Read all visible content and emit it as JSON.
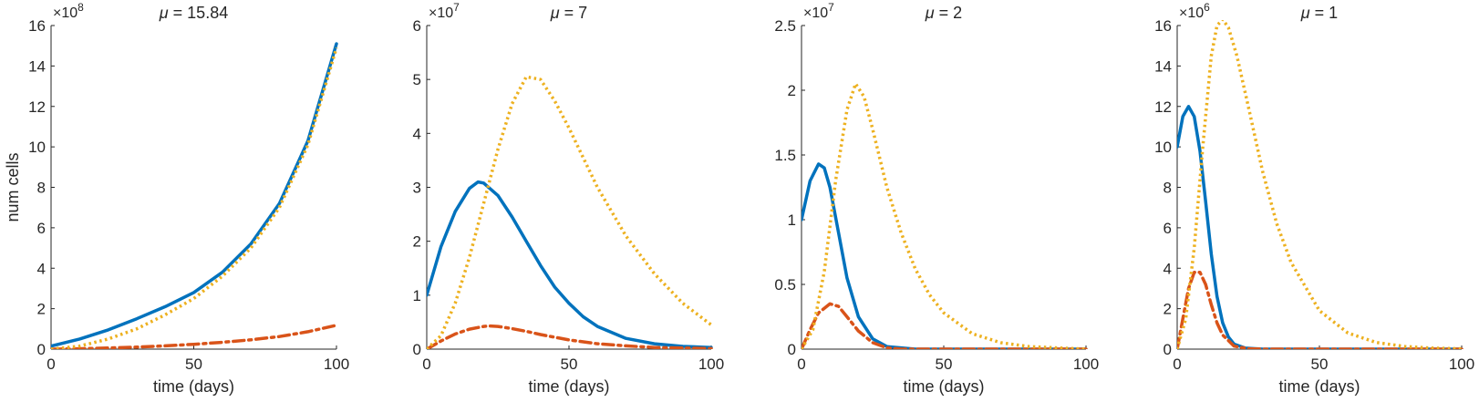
{
  "colors": {
    "series1": "#0072BD",
    "series2": "#D95319",
    "series3": "#EDB120",
    "axis": "#262626"
  },
  "chart_data": [
    {
      "type": "line",
      "title": "μ = 15.84",
      "title_symbol": "μ",
      "title_rest": " = 15.84",
      "xlabel": "time (days)",
      "ylabel": "num cells",
      "xlim": [
        0,
        100
      ],
      "ylim": [
        0,
        16
      ],
      "y_exponent_base": "×10",
      "y_exponent_power": "8",
      "xticks": [
        "0",
        "50",
        "100"
      ],
      "yticks": [
        "0",
        "2",
        "4",
        "6",
        "8",
        "10",
        "12",
        "14",
        "16"
      ],
      "grid": false,
      "series": [
        {
          "style": "solid",
          "x": [
            0,
            10,
            20,
            30,
            40,
            50,
            60,
            70,
            80,
            90,
            100
          ],
          "values": [
            0.15,
            0.5,
            0.95,
            1.5,
            2.1,
            2.8,
            3.8,
            5.2,
            7.2,
            10.3,
            15.1
          ]
        },
        {
          "style": "dashdot",
          "x": [
            0,
            10,
            20,
            30,
            40,
            50,
            60,
            70,
            80,
            90,
            100
          ],
          "values": [
            0,
            0.02,
            0.06,
            0.1,
            0.16,
            0.24,
            0.34,
            0.46,
            0.62,
            0.86,
            1.18
          ]
        },
        {
          "style": "dotted",
          "x": [
            0,
            10,
            20,
            30,
            40,
            50,
            60,
            70,
            80,
            90,
            100
          ],
          "values": [
            0,
            0.15,
            0.5,
            1.0,
            1.7,
            2.5,
            3.6,
            5.0,
            7.0,
            10.1,
            14.9
          ]
        }
      ]
    },
    {
      "type": "line",
      "title": "μ = 7",
      "title_symbol": "μ",
      "title_rest": " = 7",
      "xlabel": "time (days)",
      "ylabel": "",
      "xlim": [
        0,
        100
      ],
      "ylim": [
        0,
        6
      ],
      "y_exponent_base": "×10",
      "y_exponent_power": "7",
      "xticks": [
        "0",
        "50",
        "100"
      ],
      "yticks": [
        "0",
        "1",
        "2",
        "3",
        "4",
        "5",
        "6"
      ],
      "grid": false,
      "series": [
        {
          "style": "solid",
          "x": [
            0,
            5,
            10,
            15,
            18,
            20,
            25,
            30,
            35,
            40,
            45,
            50,
            55,
            60,
            70,
            80,
            90,
            100
          ],
          "values": [
            1.0,
            1.9,
            2.55,
            2.98,
            3.1,
            3.08,
            2.85,
            2.45,
            2.0,
            1.55,
            1.15,
            0.85,
            0.6,
            0.42,
            0.2,
            0.1,
            0.05,
            0.03
          ]
        },
        {
          "style": "dashdot",
          "x": [
            0,
            5,
            10,
            15,
            20,
            22,
            25,
            30,
            35,
            40,
            50,
            60,
            70,
            80,
            90,
            100
          ],
          "values": [
            0,
            0.15,
            0.28,
            0.37,
            0.42,
            0.43,
            0.42,
            0.38,
            0.33,
            0.27,
            0.17,
            0.1,
            0.06,
            0.03,
            0.02,
            0.01
          ]
        },
        {
          "style": "dotted",
          "x": [
            0,
            5,
            10,
            15,
            20,
            25,
            30,
            35,
            40,
            45,
            50,
            55,
            60,
            70,
            80,
            90,
            100
          ],
          "values": [
            0,
            0.25,
            0.85,
            1.7,
            2.7,
            3.7,
            4.55,
            5.05,
            5.0,
            4.6,
            4.1,
            3.55,
            3.0,
            2.1,
            1.4,
            0.85,
            0.45
          ]
        }
      ]
    },
    {
      "type": "line",
      "title": "μ = 2",
      "title_symbol": "μ",
      "title_rest": " = 2",
      "xlabel": "time (days)",
      "ylabel": "",
      "xlim": [
        0,
        100
      ],
      "ylim": [
        0,
        2.5
      ],
      "y_exponent_base": "×10",
      "y_exponent_power": "7",
      "xticks": [
        "0",
        "50",
        "100"
      ],
      "yticks": [
        "0",
        "0.5",
        "1",
        "1.5",
        "2",
        "2.5"
      ],
      "grid": false,
      "series": [
        {
          "style": "solid",
          "x": [
            0,
            3,
            6,
            8,
            10,
            13,
            16,
            20,
            25,
            30,
            35,
            40,
            50,
            60,
            70,
            80,
            90,
            100
          ],
          "values": [
            1.0,
            1.3,
            1.43,
            1.4,
            1.25,
            0.9,
            0.55,
            0.25,
            0.08,
            0.02,
            0.01,
            0,
            0,
            0,
            0,
            0,
            0,
            0
          ]
        },
        {
          "style": "dashdot",
          "x": [
            0,
            3,
            6,
            10,
            13,
            16,
            20,
            25,
            30,
            35,
            40,
            50,
            60,
            70,
            80,
            90,
            100
          ],
          "values": [
            0,
            0.15,
            0.28,
            0.35,
            0.33,
            0.25,
            0.14,
            0.05,
            0.01,
            0,
            0,
            0,
            0,
            0,
            0,
            0,
            0
          ]
        },
        {
          "style": "dotted",
          "x": [
            0,
            4,
            8,
            12,
            16,
            19,
            22,
            25,
            30,
            35,
            40,
            45,
            50,
            60,
            70,
            80,
            90,
            100
          ],
          "values": [
            0,
            0.15,
            0.6,
            1.3,
            1.85,
            2.05,
            1.95,
            1.7,
            1.25,
            0.9,
            0.62,
            0.42,
            0.28,
            0.12,
            0.05,
            0.02,
            0.01,
            0
          ]
        }
      ]
    },
    {
      "type": "line",
      "title": "μ = 1",
      "title_symbol": "μ",
      "title_rest": " = 1",
      "xlabel": "time (days)",
      "ylabel": "",
      "xlim": [
        0,
        100
      ],
      "ylim": [
        0,
        16
      ],
      "y_exponent_base": "×10",
      "y_exponent_power": "6",
      "xticks": [
        "0",
        "50",
        "100"
      ],
      "yticks": [
        "0",
        "2",
        "4",
        "6",
        "8",
        "10",
        "12",
        "14",
        "16"
      ],
      "grid": false,
      "series": [
        {
          "style": "solid",
          "x": [
            0,
            2,
            4,
            6,
            8,
            10,
            12,
            14,
            16,
            18,
            20,
            24,
            30,
            40,
            50,
            60,
            70,
            80,
            90,
            100
          ],
          "values": [
            10.0,
            11.5,
            12.0,
            11.5,
            9.8,
            7.3,
            4.7,
            2.6,
            1.3,
            0.6,
            0.25,
            0.05,
            0,
            0,
            0,
            0,
            0,
            0,
            0,
            0
          ]
        },
        {
          "style": "dashdot",
          "x": [
            0,
            2,
            4,
            6,
            8,
            10,
            12,
            14,
            16,
            20,
            25,
            30,
            40,
            50,
            60,
            70,
            80,
            90,
            100
          ],
          "values": [
            0,
            1.5,
            3.0,
            3.8,
            3.8,
            3.2,
            2.2,
            1.3,
            0.7,
            0.15,
            0.02,
            0,
            0,
            0,
            0,
            0,
            0,
            0,
            0
          ]
        },
        {
          "style": "dotted",
          "x": [
            0,
            3,
            6,
            9,
            12,
            14,
            16,
            18,
            21,
            25,
            30,
            35,
            40,
            50,
            60,
            70,
            80,
            90,
            100
          ],
          "values": [
            0,
            1.5,
            5.0,
            10.0,
            14.5,
            16.0,
            16.3,
            15.9,
            14.5,
            12.0,
            8.8,
            6.2,
            4.3,
            1.9,
            0.8,
            0.33,
            0.13,
            0.05,
            0.02
          ]
        }
      ]
    }
  ]
}
